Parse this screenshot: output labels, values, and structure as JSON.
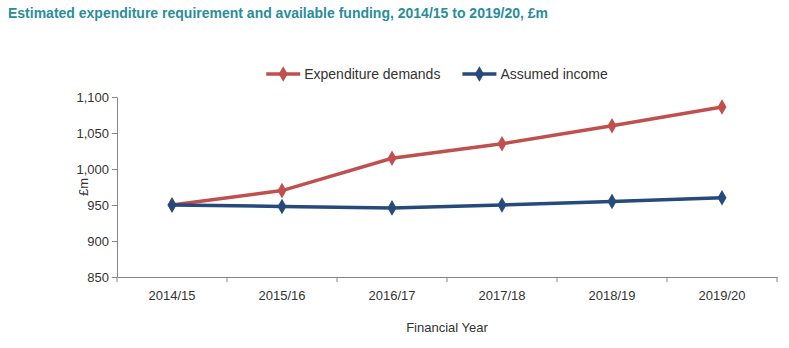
{
  "chart_data": {
    "type": "line",
    "title": "Estimated expenditure requirement and available funding, 2014/15 to 2019/20, £m",
    "x_label": "Financial Year",
    "y_label": "£m",
    "categories": [
      "2014/15",
      "2015/16",
      "2016/17",
      "2017/18",
      "2018/19",
      "2019/20"
    ],
    "series": [
      {
        "name": "Expenditure demands",
        "color": "#c0504d",
        "marker": "diamond",
        "values": [
          950,
          970,
          1015,
          1035,
          1060,
          1086
        ]
      },
      {
        "name": "Assumed income",
        "color": "#254a7b",
        "marker": "diamond",
        "values": [
          950,
          948,
          946,
          950,
          955,
          960
        ]
      }
    ],
    "ylim": [
      850,
      1100
    ],
    "yticks": [
      850,
      900,
      950,
      {
        "value": 1000,
        "label": "1,000"
      },
      {
        "value": 1050,
        "label": "1,050"
      },
      {
        "value": 1100,
        "label": "1,100"
      }
    ],
    "grid": false,
    "legend": "top"
  }
}
